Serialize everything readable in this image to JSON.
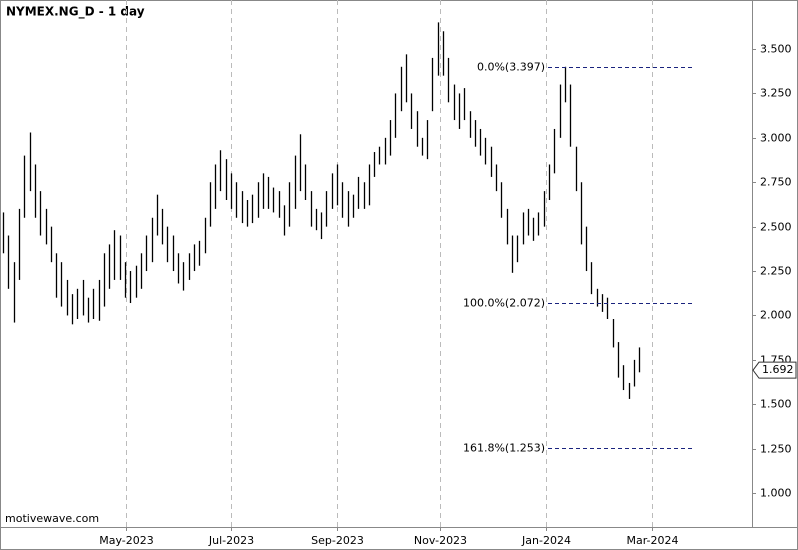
{
  "chart_data": {
    "type": "ohlc",
    "title": "NYMEX.NG_D - 1 day",
    "watermark": "motivewave.com",
    "categories": [
      null,
      null,
      null,
      null,
      null,
      null,
      null,
      null,
      null,
      null,
      null,
      null,
      null,
      null,
      null,
      null,
      null,
      null,
      null,
      null,
      null,
      null,
      null,
      null,
      null,
      null,
      null,
      null,
      null,
      null,
      null,
      null,
      null,
      null,
      null,
      null,
      null,
      null,
      null,
      null,
      null,
      null,
      null,
      null,
      null,
      null,
      null,
      null,
      null,
      null,
      null,
      null,
      null,
      null,
      null,
      null,
      null,
      null,
      null,
      null,
      null,
      null,
      null,
      null,
      null,
      null,
      null,
      null,
      null,
      null,
      null,
      null,
      null,
      null,
      null,
      null,
      null,
      null,
      null,
      null,
      null,
      null,
      null,
      null,
      null,
      null,
      null,
      null,
      null,
      null,
      null,
      null,
      null,
      null,
      null,
      null,
      null,
      null,
      null,
      null,
      null,
      null,
      null,
      null,
      null,
      null,
      null,
      null,
      null,
      null,
      null,
      null,
      null,
      null,
      null,
      null,
      null,
      null,
      null,
      null,
      null
    ],
    "high": [
      2.58,
      2.45,
      2.3,
      2.6,
      2.9,
      3.03,
      2.85,
      2.7,
      2.6,
      2.5,
      2.35,
      2.3,
      2.2,
      2.12,
      2.15,
      2.2,
      2.1,
      2.15,
      2.2,
      2.35,
      2.4,
      2.48,
      2.45,
      2.3,
      2.25,
      2.28,
      2.35,
      2.45,
      2.55,
      2.68,
      2.6,
      2.5,
      2.45,
      2.35,
      2.3,
      2.35,
      2.4,
      2.42,
      2.55,
      2.75,
      2.85,
      2.93,
      2.88,
      2.8,
      2.75,
      2.7,
      2.65,
      2.68,
      2.75,
      2.8,
      2.78,
      2.72,
      2.7,
      2.62,
      2.75,
      2.9,
      3.02,
      2.85,
      2.7,
      2.6,
      2.58,
      2.7,
      2.8,
      2.85,
      2.75,
      2.7,
      2.68,
      2.78,
      2.75,
      2.85,
      2.92,
      2.95,
      3.0,
      3.1,
      3.25,
      3.4,
      3.47,
      3.25,
      3.15,
      3.0,
      3.1,
      3.45,
      3.65,
      3.6,
      3.45,
      3.3,
      3.25,
      3.28,
      3.15,
      3.1,
      3.05,
      3.0,
      2.95,
      2.85,
      2.75,
      2.6,
      2.45,
      2.45,
      2.58,
      2.6,
      2.55,
      2.58,
      2.7,
      2.85,
      3.05,
      3.3,
      3.4,
      3.3,
      2.95,
      2.75,
      2.5,
      2.3,
      2.15,
      2.12,
      2.1,
      1.98,
      1.85,
      1.72,
      1.62,
      1.75,
      1.82
    ],
    "low": [
      2.35,
      2.15,
      1.96,
      2.2,
      2.55,
      2.7,
      2.55,
      2.45,
      2.4,
      2.3,
      2.1,
      2.05,
      2.0,
      1.95,
      1.98,
      2.0,
      1.96,
      1.98,
      1.97,
      2.05,
      2.15,
      2.2,
      2.2,
      2.1,
      2.07,
      2.1,
      2.15,
      2.25,
      2.3,
      2.45,
      2.4,
      2.3,
      2.25,
      2.18,
      2.14,
      2.2,
      2.25,
      2.28,
      2.35,
      2.5,
      2.6,
      2.7,
      2.65,
      2.6,
      2.55,
      2.52,
      2.5,
      2.52,
      2.55,
      2.6,
      2.6,
      2.58,
      2.55,
      2.45,
      2.5,
      2.6,
      2.7,
      2.65,
      2.5,
      2.48,
      2.43,
      2.5,
      2.6,
      2.62,
      2.55,
      2.5,
      2.55,
      2.6,
      2.6,
      2.62,
      2.78,
      2.85,
      2.85,
      2.9,
      3.0,
      3.15,
      3.2,
      3.05,
      2.95,
      2.9,
      2.88,
      3.15,
      3.35,
      3.35,
      3.2,
      3.1,
      3.05,
      3.1,
      3.0,
      2.95,
      2.9,
      2.85,
      2.78,
      2.7,
      2.55,
      2.4,
      2.24,
      2.3,
      2.4,
      2.45,
      2.42,
      2.45,
      2.5,
      2.65,
      2.8,
      3.0,
      3.2,
      2.95,
      2.7,
      2.4,
      2.25,
      2.12,
      2.05,
      2.02,
      1.98,
      1.82,
      1.65,
      1.58,
      1.53,
      1.6,
      1.68
    ],
    "color": "#000000",
    "xlim": [
      -0.6,
      141.3
    ],
    "ylim": [
      0.809,
      3.776
    ],
    "xticks": [
      {
        "value": 23.2,
        "label": "May-2023"
      },
      {
        "value": 43.0,
        "label": "Jul-2023"
      },
      {
        "value": 63.0,
        "label": "Sep-2023"
      },
      {
        "value": 82.5,
        "label": "Nov-2023"
      },
      {
        "value": 102.5,
        "label": "Jan-2024"
      },
      {
        "value": 122.5,
        "label": "Mar-2024"
      }
    ],
    "yticks": [
      {
        "value": 1,
        "label": "1.000"
      },
      {
        "value": 1.25,
        "label": "1.250"
      },
      {
        "value": 1.5,
        "label": "1.500"
      },
      {
        "value": 1.75,
        "label": "1.750"
      },
      {
        "value": 2,
        "label": "2.000"
      },
      {
        "value": 2.25,
        "label": "2.250"
      },
      {
        "value": 2.5,
        "label": "2.500"
      },
      {
        "value": 2.75,
        "label": "2.750"
      },
      {
        "value": 3,
        "label": "3.000"
      },
      {
        "value": 3.25,
        "label": "3.250"
      },
      {
        "value": 3.5,
        "label": "3.500"
      }
    ],
    "grid": true,
    "levels": [
      {
        "value": 3.397,
        "label": "0.0%(3.397)"
      },
      {
        "value": 2.072,
        "label": "100.0%(2.072)"
      },
      {
        "value": 1.253,
        "label": "161.8%(1.253)"
      }
    ],
    "last_price": 1.692
  }
}
